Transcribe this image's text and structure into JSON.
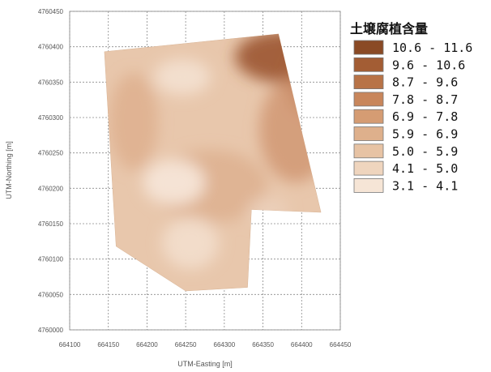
{
  "chart_data": {
    "type": "heatmap",
    "title": "",
    "xlabel": "UTM-Easting [m]",
    "ylabel": "UTM-Northing [m]",
    "xlim": [
      664100,
      664450
    ],
    "ylim": [
      4760000,
      4760450
    ],
    "x_ticks": [
      "664100",
      "664150",
      "664200",
      "664250",
      "664300",
      "664350",
      "664400",
      "664450"
    ],
    "y_ticks": [
      "4760000",
      "4760050",
      "4760100",
      "4760150",
      "4760200",
      "4760250",
      "4760300",
      "4760350",
      "4760400",
      "4760450"
    ],
    "grid": true,
    "field_boundary_utm": [
      [
        664145,
        4760393
      ],
      [
        664370,
        4760418
      ],
      [
        664425,
        4760166
      ],
      [
        664335,
        4760170
      ],
      [
        664330,
        4760060
      ],
      [
        664250,
        4760055
      ],
      [
        664160,
        4760118
      ]
    ],
    "legend": {
      "title": "土壌腐植含量",
      "placement": "right",
      "classes": [
        {
          "label": "10.6 - 11.6",
          "color": "#8a4a25"
        },
        {
          "label": "9.6 - 10.6",
          "color": "#a35d34"
        },
        {
          "label": "8.7 - 9.6",
          "color": "#b87347"
        },
        {
          "label": "7.8 - 8.7",
          "color": "#c8865b"
        },
        {
          "label": "6.9 - 7.8",
          "color": "#d59c73"
        },
        {
          "label": "5.9 - 6.9",
          "color": "#deb08c"
        },
        {
          "label": "5.0 - 5.9",
          "color": "#e7c3a4"
        },
        {
          "label": "4.1 - 5.0",
          "color": "#efd5be"
        },
        {
          "label": "3.1 - 4.1",
          "color": "#f6e5d6"
        }
      ]
    }
  }
}
